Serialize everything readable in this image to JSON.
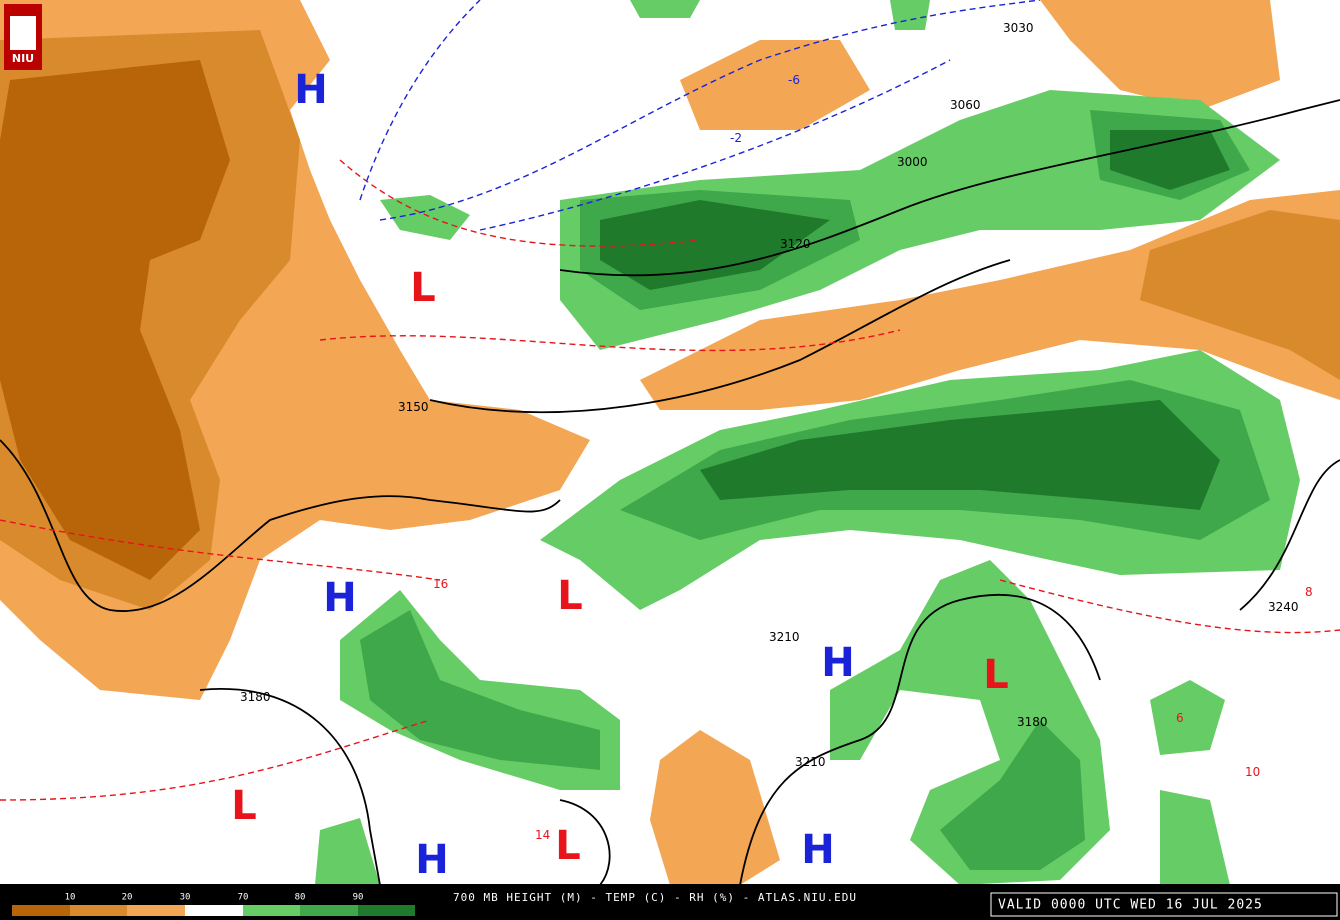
{
  "logo": "NIU",
  "footer": {
    "title": "700 MB HEIGHT (M) - TEMP (C) - RH (%) - ATLAS.NIU.EDU",
    "valid": "VALID 0000 UTC WED 16 JUL 2025"
  },
  "legend": {
    "labels": [
      "10",
      "20",
      "30",
      "70",
      "80",
      "90"
    ]
  },
  "pressure_centers": [
    "H",
    "H",
    "H",
    "H",
    "H",
    "L",
    "L",
    "L",
    "L",
    "L"
  ],
  "height_labels": [
    "3030",
    "3060",
    "3000",
    "3120",
    "3150",
    "3180",
    "3210",
    "3210",
    "3240",
    "3180"
  ],
  "temp_labels": [
    "16",
    "14",
    "6",
    "10",
    "8",
    "-6",
    "-2"
  ]
}
